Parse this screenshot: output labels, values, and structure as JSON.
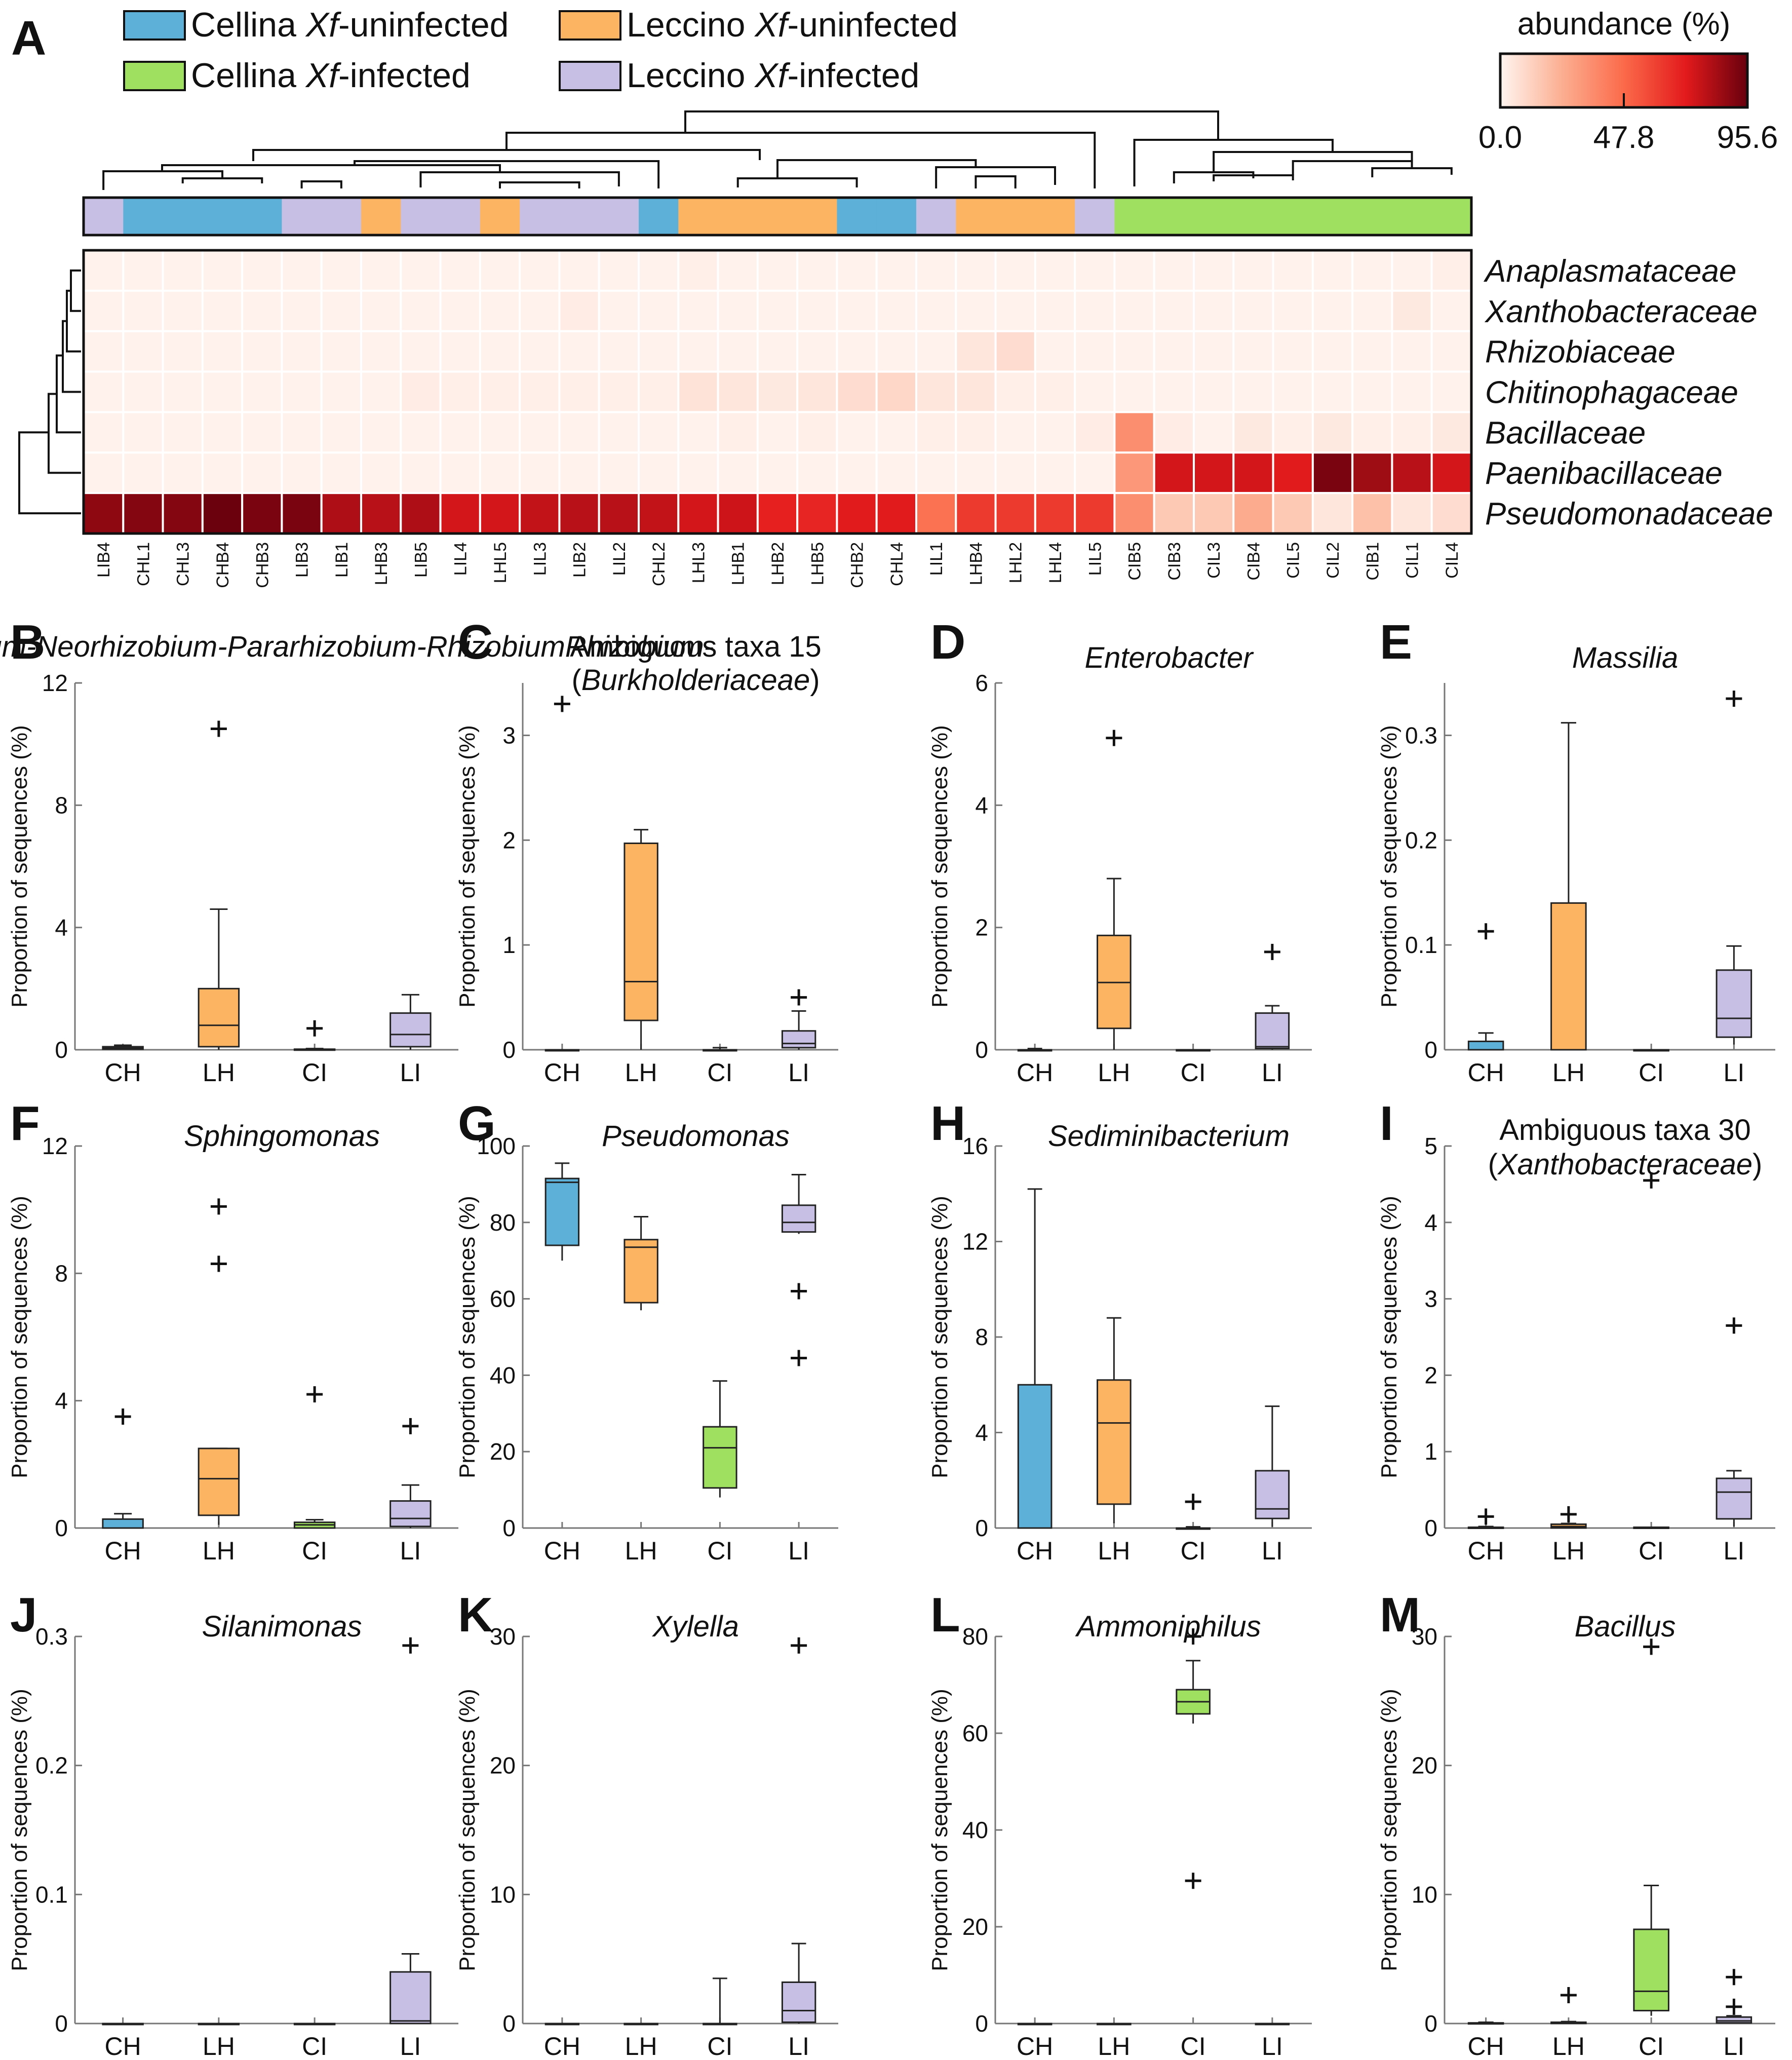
{
  "chart_data": [
    {
      "panel": "A",
      "type": "heatmap",
      "title": "abundance (%)",
      "legend": [
        {
          "label": "Cellina Xf-uninfected",
          "color": "#5db0d8"
        },
        {
          "label": "Cellina Xf-infected",
          "color": "#a0e060"
        },
        {
          "label": "Leccino Xf-uninfected",
          "color": "#fdb462"
        },
        {
          "label": "Leccino Xf-infected",
          "color": "#c8c0e4"
        }
      ],
      "colorbar": {
        "min": 0.0,
        "mid": 47.8,
        "max": 95.6,
        "tick_labels": [
          "0.0",
          "47.8",
          "95.6"
        ]
      },
      "rows": [
        "Anaplasmataceae",
        "Xanthobacteraceae",
        "Rhizobiaceae",
        "Chitinophagaceae",
        "Bacillaceae",
        "Paenibacillaceae",
        "Pseudomonadaceae"
      ],
      "columns": [
        "LIB4",
        "CHL1",
        "CHL3",
        "CHB4",
        "CHB3",
        "LIB3",
        "LIB1",
        "LHB3",
        "LIB5",
        "LIL4",
        "LHL5",
        "LIL3",
        "LIB2",
        "LIL2",
        "CHL2",
        "LHL3",
        "LHB1",
        "LHB2",
        "LHB5",
        "CHB2",
        "CHL4",
        "LIL1",
        "LHB4",
        "LHL2",
        "LHL4",
        "LIL5",
        "CIB5",
        "CIB3",
        "CIL3",
        "CIB4",
        "CIL5",
        "CIL2",
        "CIB1",
        "CIL1",
        "CIL4"
      ],
      "column_groups": [
        "LI",
        "CH",
        "CH",
        "CH",
        "CH",
        "LI",
        "LI",
        "LH",
        "LI",
        "LI",
        "LH",
        "LI",
        "LI",
        "LI",
        "CH",
        "LH",
        "LH",
        "LH",
        "LH",
        "CH",
        "CH",
        "LI",
        "LH",
        "LH",
        "LH",
        "LI",
        "CI",
        "CI",
        "CI",
        "CI",
        "CI",
        "CI",
        "CI",
        "CI",
        "CI"
      ],
      "values": [
        [
          1,
          1,
          1,
          1,
          1,
          1,
          1,
          1,
          1,
          1,
          1,
          1,
          1,
          1,
          1,
          2,
          1,
          1,
          1,
          1,
          1,
          1,
          1,
          1,
          1,
          1,
          1,
          1,
          1,
          1,
          1,
          1,
          1,
          1,
          2
        ],
        [
          1,
          1,
          1,
          1,
          1,
          1,
          1,
          1,
          1,
          1,
          1,
          1,
          3,
          1,
          1,
          1,
          1,
          1,
          1,
          1,
          1,
          1,
          1,
          1,
          1,
          1,
          1,
          1,
          1,
          1,
          1,
          1,
          1,
          4,
          1
        ],
        [
          1,
          1,
          1,
          1,
          1,
          1,
          1,
          1,
          1,
          1,
          1,
          1,
          1,
          1,
          1,
          1,
          1,
          1,
          1,
          1,
          1,
          1,
          5,
          8,
          1,
          1,
          1,
          1,
          1,
          1,
          1,
          1,
          1,
          1,
          1
        ],
        [
          1,
          1,
          1,
          1,
          1,
          1,
          1,
          1,
          3,
          2,
          2,
          2,
          2,
          2,
          2,
          6,
          5,
          4,
          5,
          8,
          10,
          5,
          5,
          2,
          2,
          1,
          1,
          1,
          1,
          1,
          1,
          1,
          1,
          1,
          1
        ],
        [
          1,
          1,
          1,
          1,
          1,
          1,
          1,
          1,
          1,
          1,
          1,
          1,
          1,
          1,
          1,
          1,
          2,
          1,
          2,
          1,
          1,
          2,
          2,
          1,
          1,
          3,
          35,
          3,
          1,
          4,
          2,
          4,
          2,
          2,
          4
        ],
        [
          1,
          1,
          1,
          1,
          1,
          1,
          1,
          1,
          1,
          1,
          1,
          1,
          1,
          1,
          1,
          1,
          1,
          1,
          1,
          1,
          1,
          1,
          1,
          1,
          1,
          1,
          32,
          75,
          75,
          75,
          72,
          92,
          85,
          80,
          75
        ],
        [
          88,
          90,
          90,
          95,
          92,
          92,
          82,
          80,
          82,
          75,
          75,
          78,
          80,
          80,
          78,
          75,
          76,
          70,
          68,
          72,
          72,
          45,
          62,
          62,
          62,
          62,
          35,
          15,
          15,
          25,
          15,
          5,
          18,
          5,
          8
        ]
      ]
    },
    {
      "panel": "B",
      "type": "box",
      "title": "Allorhizobium-Neorhizobium-Pararhizobium-Rhizobium",
      "ylabel": "Proportion of sequences (%)",
      "ylim": [
        0,
        12
      ],
      "yticks": [
        0,
        4,
        8,
        12
      ],
      "categories": [
        "CH",
        "LH",
        "CI",
        "LI"
      ],
      "boxes": [
        {
          "group": "CH",
          "min": 0,
          "q1": 0.02,
          "median": 0.05,
          "q3": 0.1,
          "max": 0.15,
          "outliers": []
        },
        {
          "group": "LH",
          "min": 0,
          "q1": 0.1,
          "median": 0.8,
          "q3": 2.0,
          "max": 4.6,
          "outliers": [
            10.5
          ]
        },
        {
          "group": "CI",
          "min": 0,
          "q1": 0,
          "median": 0,
          "q3": 0.02,
          "max": 0.04,
          "outliers": [
            0.7
          ]
        },
        {
          "group": "LI",
          "min": 0,
          "q1": 0.1,
          "median": 0.5,
          "q3": 1.2,
          "max": 1.8,
          "outliers": []
        }
      ]
    },
    {
      "panel": "C",
      "type": "box",
      "title": "Ambiguous taxa 15",
      "subtitle": "(Burkholderiaceae)",
      "ylabel": "Proportion of sequences (%)",
      "ylim": [
        0,
        3.5
      ],
      "yticks": [
        0,
        1,
        2,
        3
      ],
      "categories": [
        "CH",
        "LH",
        "CI",
        "LI"
      ],
      "boxes": [
        {
          "group": "CH",
          "min": 0,
          "q1": 0,
          "median": 0,
          "q3": 0,
          "max": 0,
          "outliers": [
            3.3
          ]
        },
        {
          "group": "LH",
          "min": 0,
          "q1": 0.28,
          "median": 0.65,
          "q3": 1.97,
          "max": 2.1,
          "outliers": []
        },
        {
          "group": "CI",
          "min": 0,
          "q1": 0,
          "median": 0,
          "q3": 0,
          "max": 0.02,
          "outliers": []
        },
        {
          "group": "LI",
          "min": 0,
          "q1": 0.02,
          "median": 0.06,
          "q3": 0.18,
          "max": 0.37,
          "outliers": [
            0.5
          ]
        }
      ]
    },
    {
      "panel": "D",
      "type": "box",
      "title": "Enterobacter",
      "ylabel": "Proportion of sequences (%)",
      "ylim": [
        0,
        6
      ],
      "yticks": [
        0,
        2,
        4,
        6
      ],
      "categories": [
        "CH",
        "LH",
        "CI",
        "LI"
      ],
      "boxes": [
        {
          "group": "CH",
          "min": 0,
          "q1": 0,
          "median": 0,
          "q3": 0,
          "max": 0.02,
          "outliers": []
        },
        {
          "group": "LH",
          "min": 0,
          "q1": 0.35,
          "median": 1.1,
          "q3": 1.87,
          "max": 2.8,
          "outliers": [
            5.1
          ]
        },
        {
          "group": "CI",
          "min": 0,
          "q1": 0,
          "median": 0,
          "q3": 0,
          "max": 0,
          "outliers": []
        },
        {
          "group": "LI",
          "min": 0,
          "q1": 0.02,
          "median": 0.05,
          "q3": 0.6,
          "max": 0.72,
          "outliers": [
            1.6
          ]
        }
      ]
    },
    {
      "panel": "E",
      "type": "box",
      "title": "Massilia",
      "ylabel": "Proportion of sequences (%)",
      "ylim": [
        0,
        0.35
      ],
      "yticks": [
        0,
        0.1,
        0.2,
        0.3
      ],
      "categories": [
        "CH",
        "LH",
        "CI",
        "LI"
      ],
      "boxes": [
        {
          "group": "CH",
          "min": 0,
          "q1": 0,
          "median": 0,
          "q3": 0.008,
          "max": 0.016,
          "outliers": [
            0.113
          ]
        },
        {
          "group": "LH",
          "min": 0,
          "q1": 0,
          "median": 0,
          "q3": 0.14,
          "max": 0.312,
          "outliers": []
        },
        {
          "group": "CI",
          "min": 0,
          "q1": 0,
          "median": 0,
          "q3": 0,
          "max": 0,
          "outliers": []
        },
        {
          "group": "LI",
          "min": 0.005,
          "q1": 0.012,
          "median": 0.03,
          "q3": 0.076,
          "max": 0.099,
          "outliers": [
            0.335
          ]
        }
      ]
    },
    {
      "panel": "F",
      "type": "box",
      "title": "Sphingomonas",
      "ylabel": "Proportion of sequences (%)",
      "ylim": [
        0,
        12
      ],
      "yticks": [
        0,
        4,
        8,
        12
      ],
      "categories": [
        "CH",
        "LH",
        "CI",
        "LI"
      ],
      "boxes": [
        {
          "group": "CH",
          "min": 0,
          "q1": 0,
          "median": 0,
          "q3": 0.28,
          "max": 0.45,
          "outliers": [
            3.5
          ]
        },
        {
          "group": "LH",
          "min": 0.1,
          "q1": 0.4,
          "median": 1.55,
          "q3": 2.5,
          "max": 2.5,
          "outliers": [
            10.1,
            8.3
          ]
        },
        {
          "group": "CI",
          "min": 0,
          "q1": 0,
          "median": 0.1,
          "q3": 0.18,
          "max": 0.26,
          "outliers": [
            4.2
          ]
        },
        {
          "group": "LI",
          "min": 0,
          "q1": 0.05,
          "median": 0.3,
          "q3": 0.85,
          "max": 1.35,
          "outliers": [
            3.2
          ]
        }
      ]
    },
    {
      "panel": "G",
      "type": "box",
      "title": "Pseudomonas",
      "ylabel": "Proportion of sequences (%)",
      "ylim": [
        0,
        100
      ],
      "yticks": [
        0,
        20,
        40,
        60,
        80,
        100
      ],
      "categories": [
        "CH",
        "LH",
        "CI",
        "LI"
      ],
      "boxes": [
        {
          "group": "CH",
          "min": 70,
          "q1": 74,
          "median": 90.5,
          "q3": 91.5,
          "max": 95.5,
          "outliers": []
        },
        {
          "group": "LH",
          "min": 57,
          "q1": 59,
          "median": 73.5,
          "q3": 75.5,
          "max": 81.5,
          "outliers": []
        },
        {
          "group": "CI",
          "min": 8,
          "q1": 10.5,
          "median": 21,
          "q3": 26.5,
          "max": 38.5,
          "outliers": []
        },
        {
          "group": "LI",
          "min": 77,
          "q1": 77.5,
          "median": 80,
          "q3": 84.5,
          "max": 92.5,
          "outliers": [
            62,
            44.5
          ]
        }
      ]
    },
    {
      "panel": "H",
      "type": "box",
      "title": "Sediminibacterium",
      "ylabel": "Proportion of sequences (%)",
      "ylim": [
        0,
        16
      ],
      "yticks": [
        0,
        4,
        8,
        12,
        16
      ],
      "categories": [
        "CH",
        "LH",
        "CI",
        "LI"
      ],
      "boxes": [
        {
          "group": "CH",
          "min": 0,
          "q1": 0,
          "median": 0,
          "q3": 6.0,
          "max": 14.2,
          "outliers": []
        },
        {
          "group": "LH",
          "min": 0.2,
          "q1": 1.0,
          "median": 4.4,
          "q3": 6.2,
          "max": 8.8,
          "outliers": []
        },
        {
          "group": "CI",
          "min": 0,
          "q1": 0,
          "median": 0,
          "q3": 0,
          "max": 0.05,
          "outliers": [
            1.1
          ]
        },
        {
          "group": "LI",
          "min": 0.05,
          "q1": 0.4,
          "median": 0.8,
          "q3": 2.4,
          "max": 5.1,
          "outliers": []
        }
      ]
    },
    {
      "panel": "I",
      "type": "box",
      "title": "Ambiguous taxa 30",
      "subtitle": "(Xanthobacteraceae)",
      "ylabel": "Proportion of sequences (%)",
      "ylim": [
        0,
        5
      ],
      "yticks": [
        0,
        1,
        2,
        3,
        4,
        5
      ],
      "categories": [
        "CH",
        "LH",
        "CI",
        "LI"
      ],
      "boxes": [
        {
          "group": "CH",
          "min": 0,
          "q1": 0,
          "median": 0,
          "q3": 0.01,
          "max": 0.02,
          "outliers": [
            0.15
          ]
        },
        {
          "group": "LH",
          "min": 0,
          "q1": 0,
          "median": 0.02,
          "q3": 0.05,
          "max": 0.06,
          "outliers": [
            0.18
          ]
        },
        {
          "group": "CI",
          "min": 0,
          "q1": 0,
          "median": 0,
          "q3": 0.01,
          "max": 0.01,
          "outliers": [
            4.55
          ]
        },
        {
          "group": "LI",
          "min": 0.02,
          "q1": 0.12,
          "median": 0.47,
          "q3": 0.65,
          "max": 0.75,
          "outliers": [
            2.65
          ]
        }
      ]
    },
    {
      "panel": "J",
      "type": "box",
      "title": "Silanimonas",
      "ylabel": "Proportion of sequences (%)",
      "ylim": [
        0,
        0.3
      ],
      "yticks": [
        0,
        0.1,
        0.2,
        0.3
      ],
      "categories": [
        "CH",
        "LH",
        "CI",
        "LI"
      ],
      "boxes": [
        {
          "group": "CH",
          "min": 0,
          "q1": 0,
          "median": 0,
          "q3": 0,
          "max": 0,
          "outliers": []
        },
        {
          "group": "LH",
          "min": 0,
          "q1": 0,
          "median": 0,
          "q3": 0,
          "max": 0,
          "outliers": []
        },
        {
          "group": "CI",
          "min": 0,
          "q1": 0,
          "median": 0,
          "q3": 0,
          "max": 0,
          "outliers": []
        },
        {
          "group": "LI",
          "min": 0,
          "q1": 0,
          "median": 0.002,
          "q3": 0.04,
          "max": 0.054,
          "outliers": [
            0.293
          ]
        }
      ]
    },
    {
      "panel": "K",
      "type": "box",
      "title": "Xylella",
      "ylabel": "Proportion of sequences (%)",
      "ylim": [
        0,
        30
      ],
      "yticks": [
        0,
        10,
        20,
        30
      ],
      "categories": [
        "CH",
        "LH",
        "CI",
        "LI"
      ],
      "boxes": [
        {
          "group": "CH",
          "min": 0,
          "q1": 0,
          "median": 0,
          "q3": 0,
          "max": 0,
          "outliers": []
        },
        {
          "group": "LH",
          "min": 0,
          "q1": 0,
          "median": 0,
          "q3": 0,
          "max": 0,
          "outliers": []
        },
        {
          "group": "CI",
          "min": 0,
          "q1": 0,
          "median": 0,
          "q3": 0,
          "max": 3.5,
          "outliers": []
        },
        {
          "group": "LI",
          "min": 0,
          "q1": 0.1,
          "median": 1.0,
          "q3": 3.2,
          "max": 6.2,
          "outliers": [
            29.3
          ]
        }
      ]
    },
    {
      "panel": "L",
      "type": "box",
      "title": "Ammoniphilus",
      "ylabel": "Proportion of sequences (%)",
      "ylim": [
        0,
        80
      ],
      "yticks": [
        0,
        20,
        40,
        60,
        80
      ],
      "categories": [
        "CH",
        "LH",
        "CI",
        "LI"
      ],
      "boxes": [
        {
          "group": "CH",
          "min": 0,
          "q1": 0,
          "median": 0,
          "q3": 0,
          "max": 0,
          "outliers": []
        },
        {
          "group": "LH",
          "min": 0,
          "q1": 0,
          "median": 0,
          "q3": 0,
          "max": 0,
          "outliers": []
        },
        {
          "group": "CI",
          "min": 62,
          "q1": 64,
          "median": 66.5,
          "q3": 69,
          "max": 75,
          "outliers": [
            80,
            29.5
          ]
        },
        {
          "group": "LI",
          "min": 0,
          "q1": 0,
          "median": 0,
          "q3": 0,
          "max": 0,
          "outliers": []
        }
      ]
    },
    {
      "panel": "M",
      "type": "box",
      "title": "Bacillus",
      "ylabel": "Proportion of sequences (%)",
      "ylim": [
        0,
        30
      ],
      "yticks": [
        0,
        10,
        20,
        30
      ],
      "categories": [
        "CH",
        "LH",
        "CI",
        "LI"
      ],
      "boxes": [
        {
          "group": "CH",
          "min": 0,
          "q1": 0,
          "median": 0.02,
          "q3": 0.05,
          "max": 0.1,
          "outliers": []
        },
        {
          "group": "LH",
          "min": 0,
          "q1": 0,
          "median": 0.05,
          "q3": 0.1,
          "max": 0.15,
          "outliers": [
            2.2
          ]
        },
        {
          "group": "CI",
          "min": 0.6,
          "q1": 1.0,
          "median": 2.5,
          "q3": 7.3,
          "max": 10.7,
          "outliers": [
            29.2
          ]
        },
        {
          "group": "LI",
          "min": 0,
          "q1": 0.05,
          "median": 0.2,
          "q3": 0.5,
          "max": 0.6,
          "outliers": [
            3.6,
            1.3
          ]
        }
      ]
    }
  ],
  "group_colors": {
    "CH": "#5db0d8",
    "LH": "#fdb462",
    "CI": "#a0e060",
    "LI": "#c8c0e4"
  }
}
